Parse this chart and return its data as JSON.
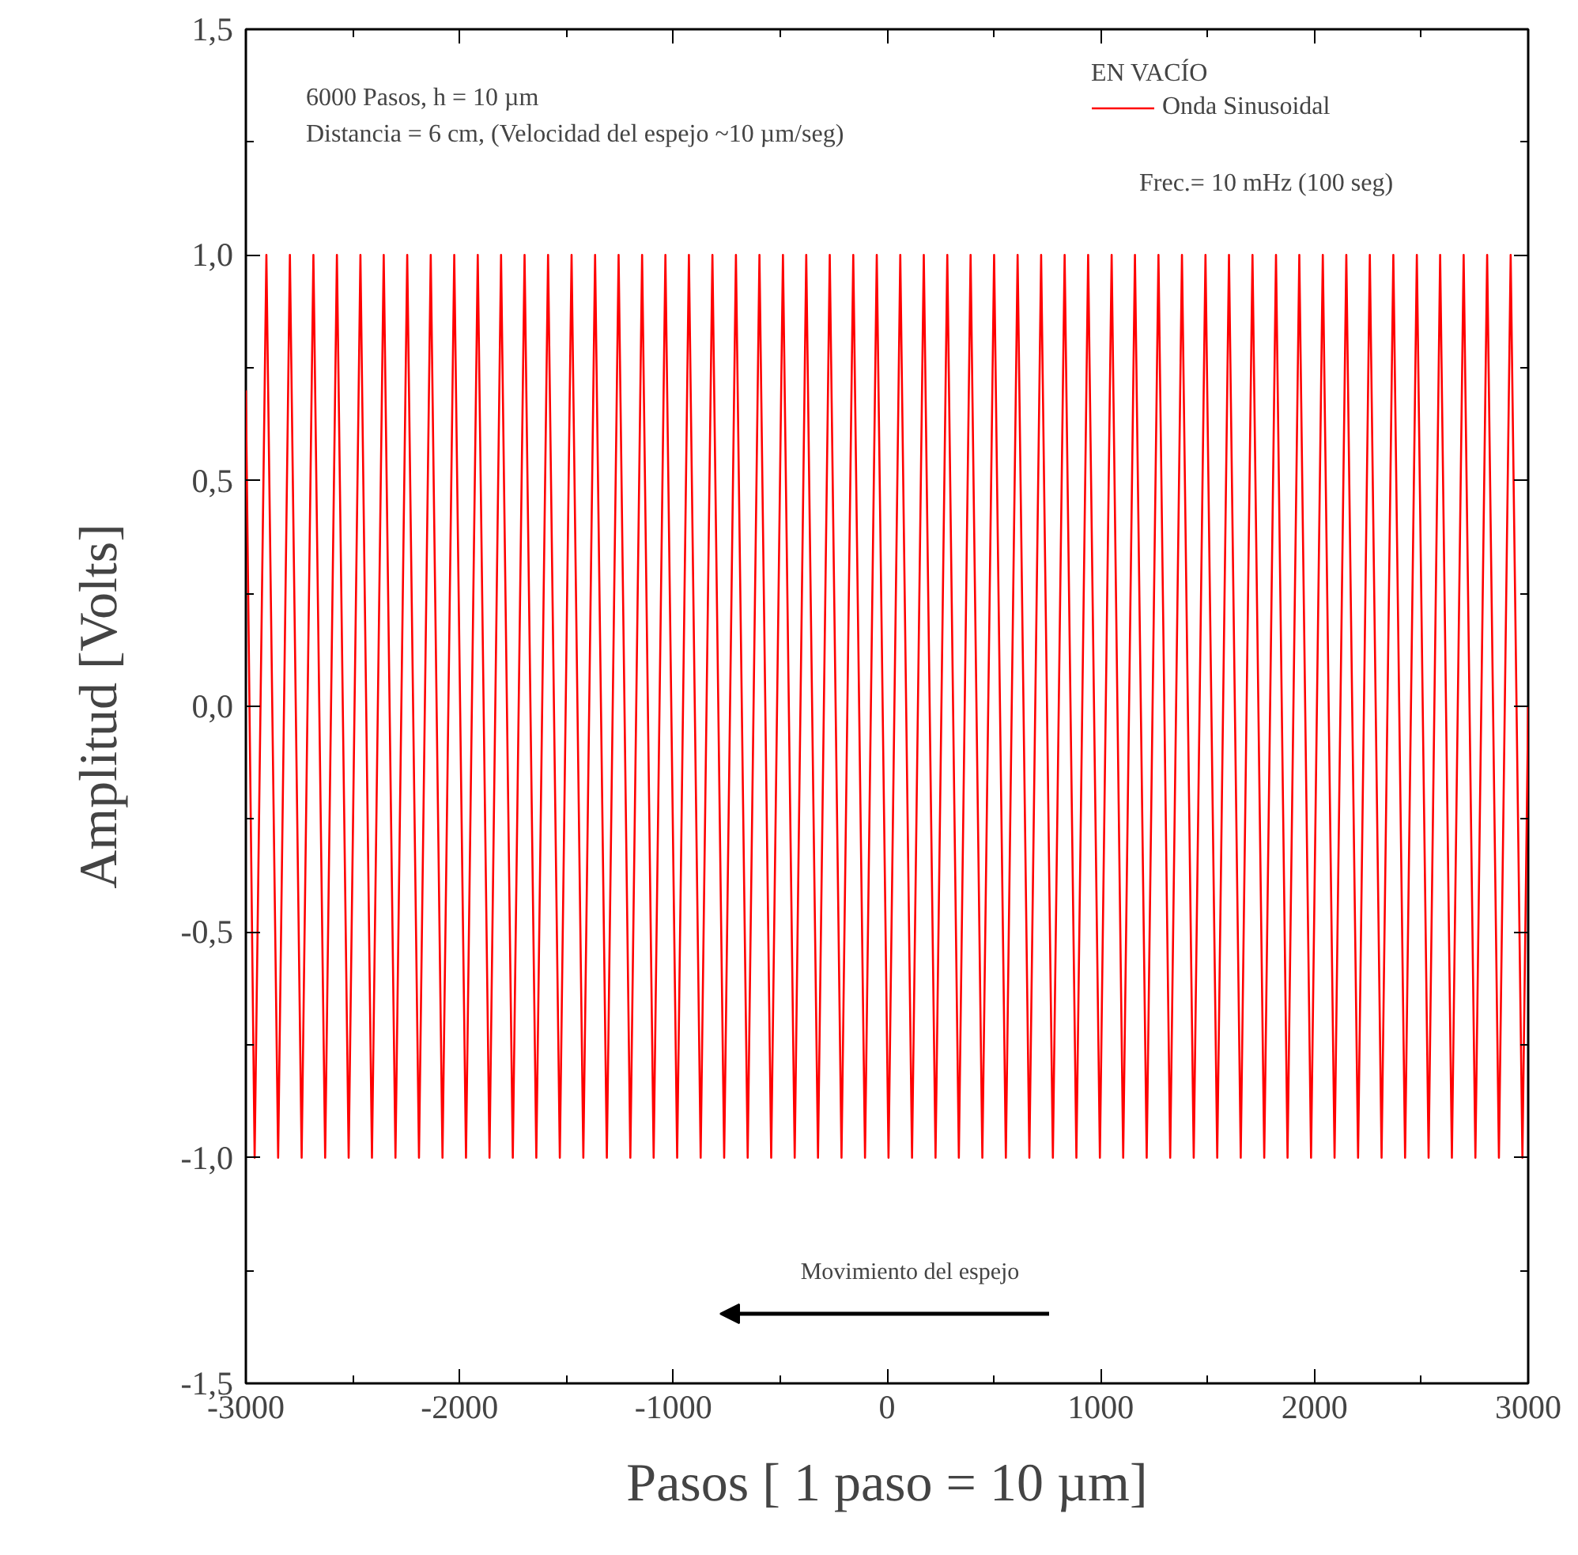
{
  "chart_data": {
    "type": "line",
    "xlabel": "Pasos [ 1 paso = 10 µm]",
    "ylabel": "Amplitud [Volts]",
    "legend_title": "EN VACÍO",
    "legend": "top right",
    "grid": false,
    "marker": "none",
    "line_style": "solid",
    "xlim": [
      -3000,
      3000
    ],
    "ylim": [
      -1.5,
      1.5
    ],
    "xticks": [
      -3000,
      -2000,
      -1000,
      0,
      1000,
      2000,
      3000
    ],
    "yticks": [
      {
        "value": -1.5,
        "label": "-1,5"
      },
      {
        "value": -1.0,
        "label": "-1,0"
      },
      {
        "value": -0.5,
        "label": "-0,5"
      },
      {
        "value": 0,
        "label": "0,0"
      },
      {
        "value": 0.5,
        "label": "0,5"
      },
      {
        "value": 1.0,
        "label": "1,0"
      },
      {
        "value": 1.5,
        "label": "1,5"
      }
    ],
    "annotations": [
      "6000 Pasos, h = 10 µm",
      "Distancia = 6 cm, (Velocidad del espejo  ~10 µm/seg)",
      "Frec.= 10 mHz (100 seg)",
      "Movimiento del espejo"
    ],
    "series": [
      {
        "name": "Onda Sinusoidal",
        "color": "#ff0000",
        "x": [
          -3000,
          -2959,
          -2904,
          -2849,
          -2794,
          -2739,
          -2684,
          -2629,
          -2574,
          -2519,
          -2464,
          -2410,
          -2355,
          -2300,
          -2245,
          -2190,
          -2135,
          -2080,
          -2025,
          -1970,
          -1915,
          -1860,
          -1806,
          -1751,
          -1696,
          -1641,
          -1586,
          -1531,
          -1476,
          -1421,
          -1366,
          -1311,
          -1256,
          -1201,
          -1146,
          -1092,
          -1037,
          -982,
          -927,
          -872,
          -817,
          -762,
          -707,
          -652,
          -597,
          -542,
          -487,
          -432,
          -378,
          -323,
          -268,
          -213,
          -158,
          -103,
          -48,
          7,
          62,
          117,
          172,
          227,
          282,
          336,
          391,
          446,
          501,
          556,
          611,
          666,
          721,
          776,
          831,
          886,
          941,
          996,
          1051,
          1105,
          1160,
          1215,
          1270,
          1325,
          1380,
          1435,
          1490,
          1545,
          1600,
          1655,
          1710,
          1765,
          1820,
          1874,
          1929,
          1984,
          2039,
          2094,
          2149,
          2204,
          2259,
          2314,
          2369,
          2424,
          2479,
          2534,
          2588,
          2643,
          2698,
          2753,
          2808,
          2863,
          2918,
          2973,
          3000
        ],
        "values": [
          0.7,
          -1,
          1,
          -1,
          1,
          -1,
          1,
          -1,
          1,
          -1,
          1,
          -1,
          1,
          -1,
          1,
          -1,
          1,
          -1,
          1,
          -1,
          1,
          -1,
          1,
          -1,
          1,
          -1,
          1,
          -1,
          1,
          -1,
          1,
          -1,
          1,
          -1,
          1,
          -1,
          1,
          -1,
          1,
          -1,
          1,
          -1,
          1,
          -1,
          1,
          -1,
          1,
          -1,
          1,
          -1,
          1,
          -1,
          1,
          -1,
          1,
          -1,
          1,
          -1,
          1,
          -1,
          1,
          -1,
          1,
          -1,
          1,
          -1,
          1,
          -1,
          1,
          -1,
          1,
          -1,
          1,
          -1,
          1,
          -1,
          1,
          -1,
          1,
          -1,
          1,
          -1,
          1,
          -1,
          1,
          -1,
          1,
          -1,
          1,
          -1,
          1,
          -1,
          1,
          -1,
          1,
          -1,
          1,
          -1,
          1,
          -1,
          1,
          -1,
          1,
          -1,
          1,
          -1,
          1,
          -1,
          1,
          -1,
          0.0
        ]
      }
    ]
  }
}
